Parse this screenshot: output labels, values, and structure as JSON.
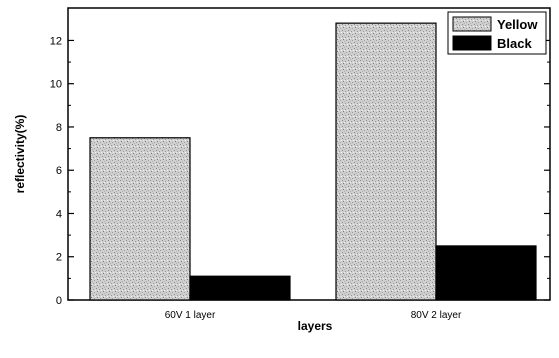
{
  "chart_data": {
    "type": "bar",
    "categories": [
      "60V 1 layer",
      "80V 2 layer"
    ],
    "series": [
      {
        "name": "Yellow",
        "values": [
          7.5,
          12.8
        ],
        "color": "#c8c8c8",
        "pattern": "speckled-gray"
      },
      {
        "name": "Black",
        "values": [
          1.1,
          2.5
        ],
        "color": "#000000"
      }
    ],
    "xlabel": "layers",
    "ylabel": "reflectivity(%)",
    "ylim": [
      0,
      13.5
    ],
    "yticks": [
      0,
      2,
      4,
      6,
      8,
      10,
      12
    ],
    "grid": false,
    "legend": "top-right"
  }
}
